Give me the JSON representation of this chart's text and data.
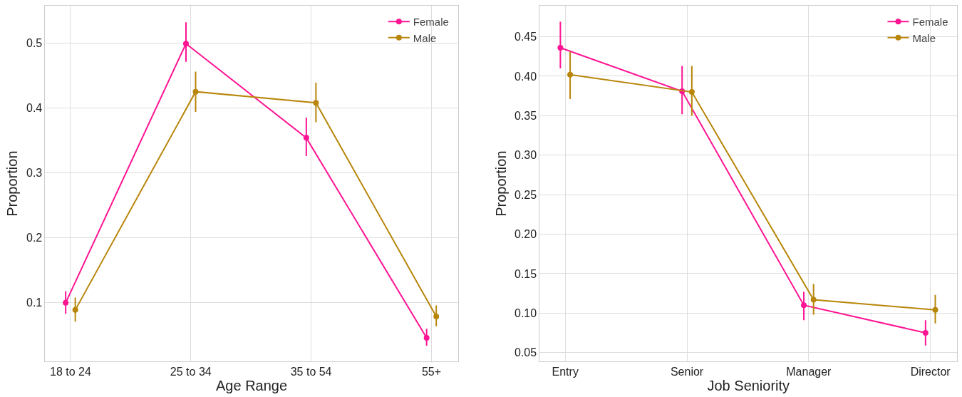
{
  "chart_data": [
    {
      "type": "line",
      "categories": [
        "18 to 24",
        "25 to 34",
        "35 to 54",
        "55+"
      ],
      "xlabel": "Age Range",
      "ylabel": "Proportion",
      "ylim": [
        0.01,
        0.557
      ],
      "yticks": [
        0.1,
        0.2,
        0.3,
        0.4,
        0.5
      ],
      "grid": true,
      "legend": "top right",
      "marker": "circle",
      "series": [
        {
          "name": "Female",
          "color": "#ff1493",
          "values": [
            0.1,
            0.499,
            0.354,
            0.046
          ],
          "errors": [
            [
              0.083,
              0.118
            ],
            [
              0.471,
              0.532
            ],
            [
              0.326,
              0.385
            ],
            [
              0.034,
              0.06
            ]
          ]
        },
        {
          "name": "Male",
          "color": "#b8860b",
          "values": [
            0.089,
            0.425,
            0.408,
            0.079
          ],
          "errors": [
            [
              0.071,
              0.108
            ],
            [
              0.394,
              0.456
            ],
            [
              0.378,
              0.439
            ],
            [
              0.064,
              0.096
            ]
          ]
        }
      ]
    },
    {
      "type": "line",
      "categories": [
        "Entry",
        "Senior",
        "Manager",
        "Director"
      ],
      "xlabel": "Job Seniority",
      "ylabel": "Proportion",
      "ylim": [
        0.039,
        0.489
      ],
      "yticks": [
        0.05,
        {
          "value": 0.1,
          "label": "0.10"
        },
        0.15,
        {
          "value": 0.2,
          "label": "0.20"
        },
        0.25,
        {
          "value": 0.3,
          "label": "0.30"
        },
        0.35,
        {
          "value": 0.4,
          "label": "0.40"
        },
        0.45
      ],
      "grid": true,
      "legend": "top right",
      "marker": "circle",
      "series": [
        {
          "name": "Female",
          "color": "#ff1493",
          "values": [
            0.436,
            0.381,
            0.11,
            0.075
          ],
          "errors": [
            [
              0.41,
              0.469
            ],
            [
              0.352,
              0.413
            ],
            [
              0.091,
              0.127
            ],
            [
              0.059,
              0.091
            ]
          ]
        },
        {
          "name": "Male",
          "color": "#b8860b",
          "values": [
            0.402,
            0.38,
            0.117,
            0.104
          ],
          "errors": [
            [
              0.371,
              0.431
            ],
            [
              0.35,
              0.413
            ],
            [
              0.098,
              0.137
            ],
            [
              0.087,
              0.123
            ]
          ]
        }
      ]
    }
  ]
}
